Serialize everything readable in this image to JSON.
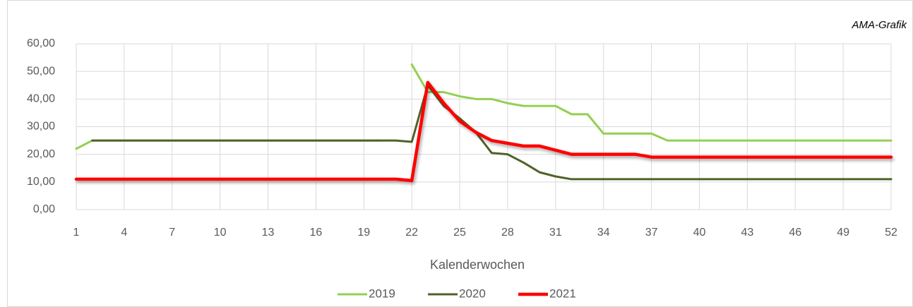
{
  "chart_data": {
    "type": "line",
    "annotation": "AMA-Grafik",
    "x_label": "Kalenderwochen",
    "x": [
      1,
      2,
      3,
      4,
      5,
      6,
      7,
      8,
      9,
      10,
      11,
      12,
      13,
      14,
      15,
      16,
      17,
      18,
      19,
      20,
      21,
      22,
      23,
      24,
      25,
      26,
      27,
      28,
      29,
      30,
      31,
      32,
      33,
      34,
      35,
      36,
      37,
      38,
      39,
      40,
      41,
      42,
      43,
      44,
      45,
      46,
      47,
      48,
      49,
      50,
      51,
      52
    ],
    "xlim": [
      1,
      52
    ],
    "xticks": [
      1,
      4,
      7,
      10,
      13,
      16,
      19,
      22,
      25,
      28,
      31,
      34,
      37,
      40,
      43,
      46,
      49,
      52
    ],
    "ylim": [
      0,
      60
    ],
    "yticks": [
      {
        "value": 0,
        "label": "0,00"
      },
      {
        "value": 10,
        "label": "10,00"
      },
      {
        "value": 20,
        "label": "20,00"
      },
      {
        "value": 30,
        "label": "30,00"
      },
      {
        "value": 40,
        "label": "40,00"
      },
      {
        "value": 50,
        "label": "50,00"
      },
      {
        "value": 60,
        "label": "60,00"
      }
    ],
    "grid": true,
    "legend": "bottom",
    "series": [
      {
        "name": "2019",
        "color": "#92d050",
        "values": [
          22,
          25,
          25,
          25,
          25,
          25,
          25,
          25,
          25,
          25,
          25,
          25,
          25,
          25,
          25,
          25,
          25,
          25,
          25,
          25,
          null,
          52.5,
          42.5,
          42.5,
          41,
          40,
          40,
          38.5,
          37.5,
          37.5,
          37.5,
          34.5,
          34.5,
          27.5,
          27.5,
          27.5,
          27.5,
          25,
          25,
          25,
          25,
          25,
          25,
          25,
          25,
          25,
          25,
          25,
          25,
          25,
          25,
          25
        ]
      },
      {
        "name": "2020",
        "color": "#4f6228",
        "values": [
          null,
          25,
          25,
          25,
          25,
          25,
          25,
          25,
          25,
          25,
          25,
          25,
          25,
          25,
          25,
          25,
          25,
          25,
          25,
          25,
          25,
          24.5,
          45,
          37.5,
          33,
          28,
          20.5,
          20,
          17,
          13.5,
          12,
          11,
          11,
          11,
          11,
          11,
          11,
          11,
          11,
          11,
          11,
          11,
          11,
          11,
          11,
          11,
          11,
          11,
          11,
          11,
          11,
          11
        ]
      },
      {
        "name": "2021",
        "color": "#ff0000",
        "values": [
          11,
          11,
          11,
          11,
          11,
          11,
          11,
          11,
          11,
          11,
          11,
          11,
          11,
          11,
          11,
          11,
          11,
          11,
          11,
          11,
          11,
          10.5,
          46,
          38.5,
          32,
          28,
          25,
          24,
          23,
          23,
          21.5,
          20,
          20,
          20,
          20,
          20,
          19,
          19,
          19,
          19,
          19,
          19,
          19,
          19,
          19,
          19,
          19,
          19,
          19,
          19,
          19,
          19
        ]
      }
    ]
  }
}
